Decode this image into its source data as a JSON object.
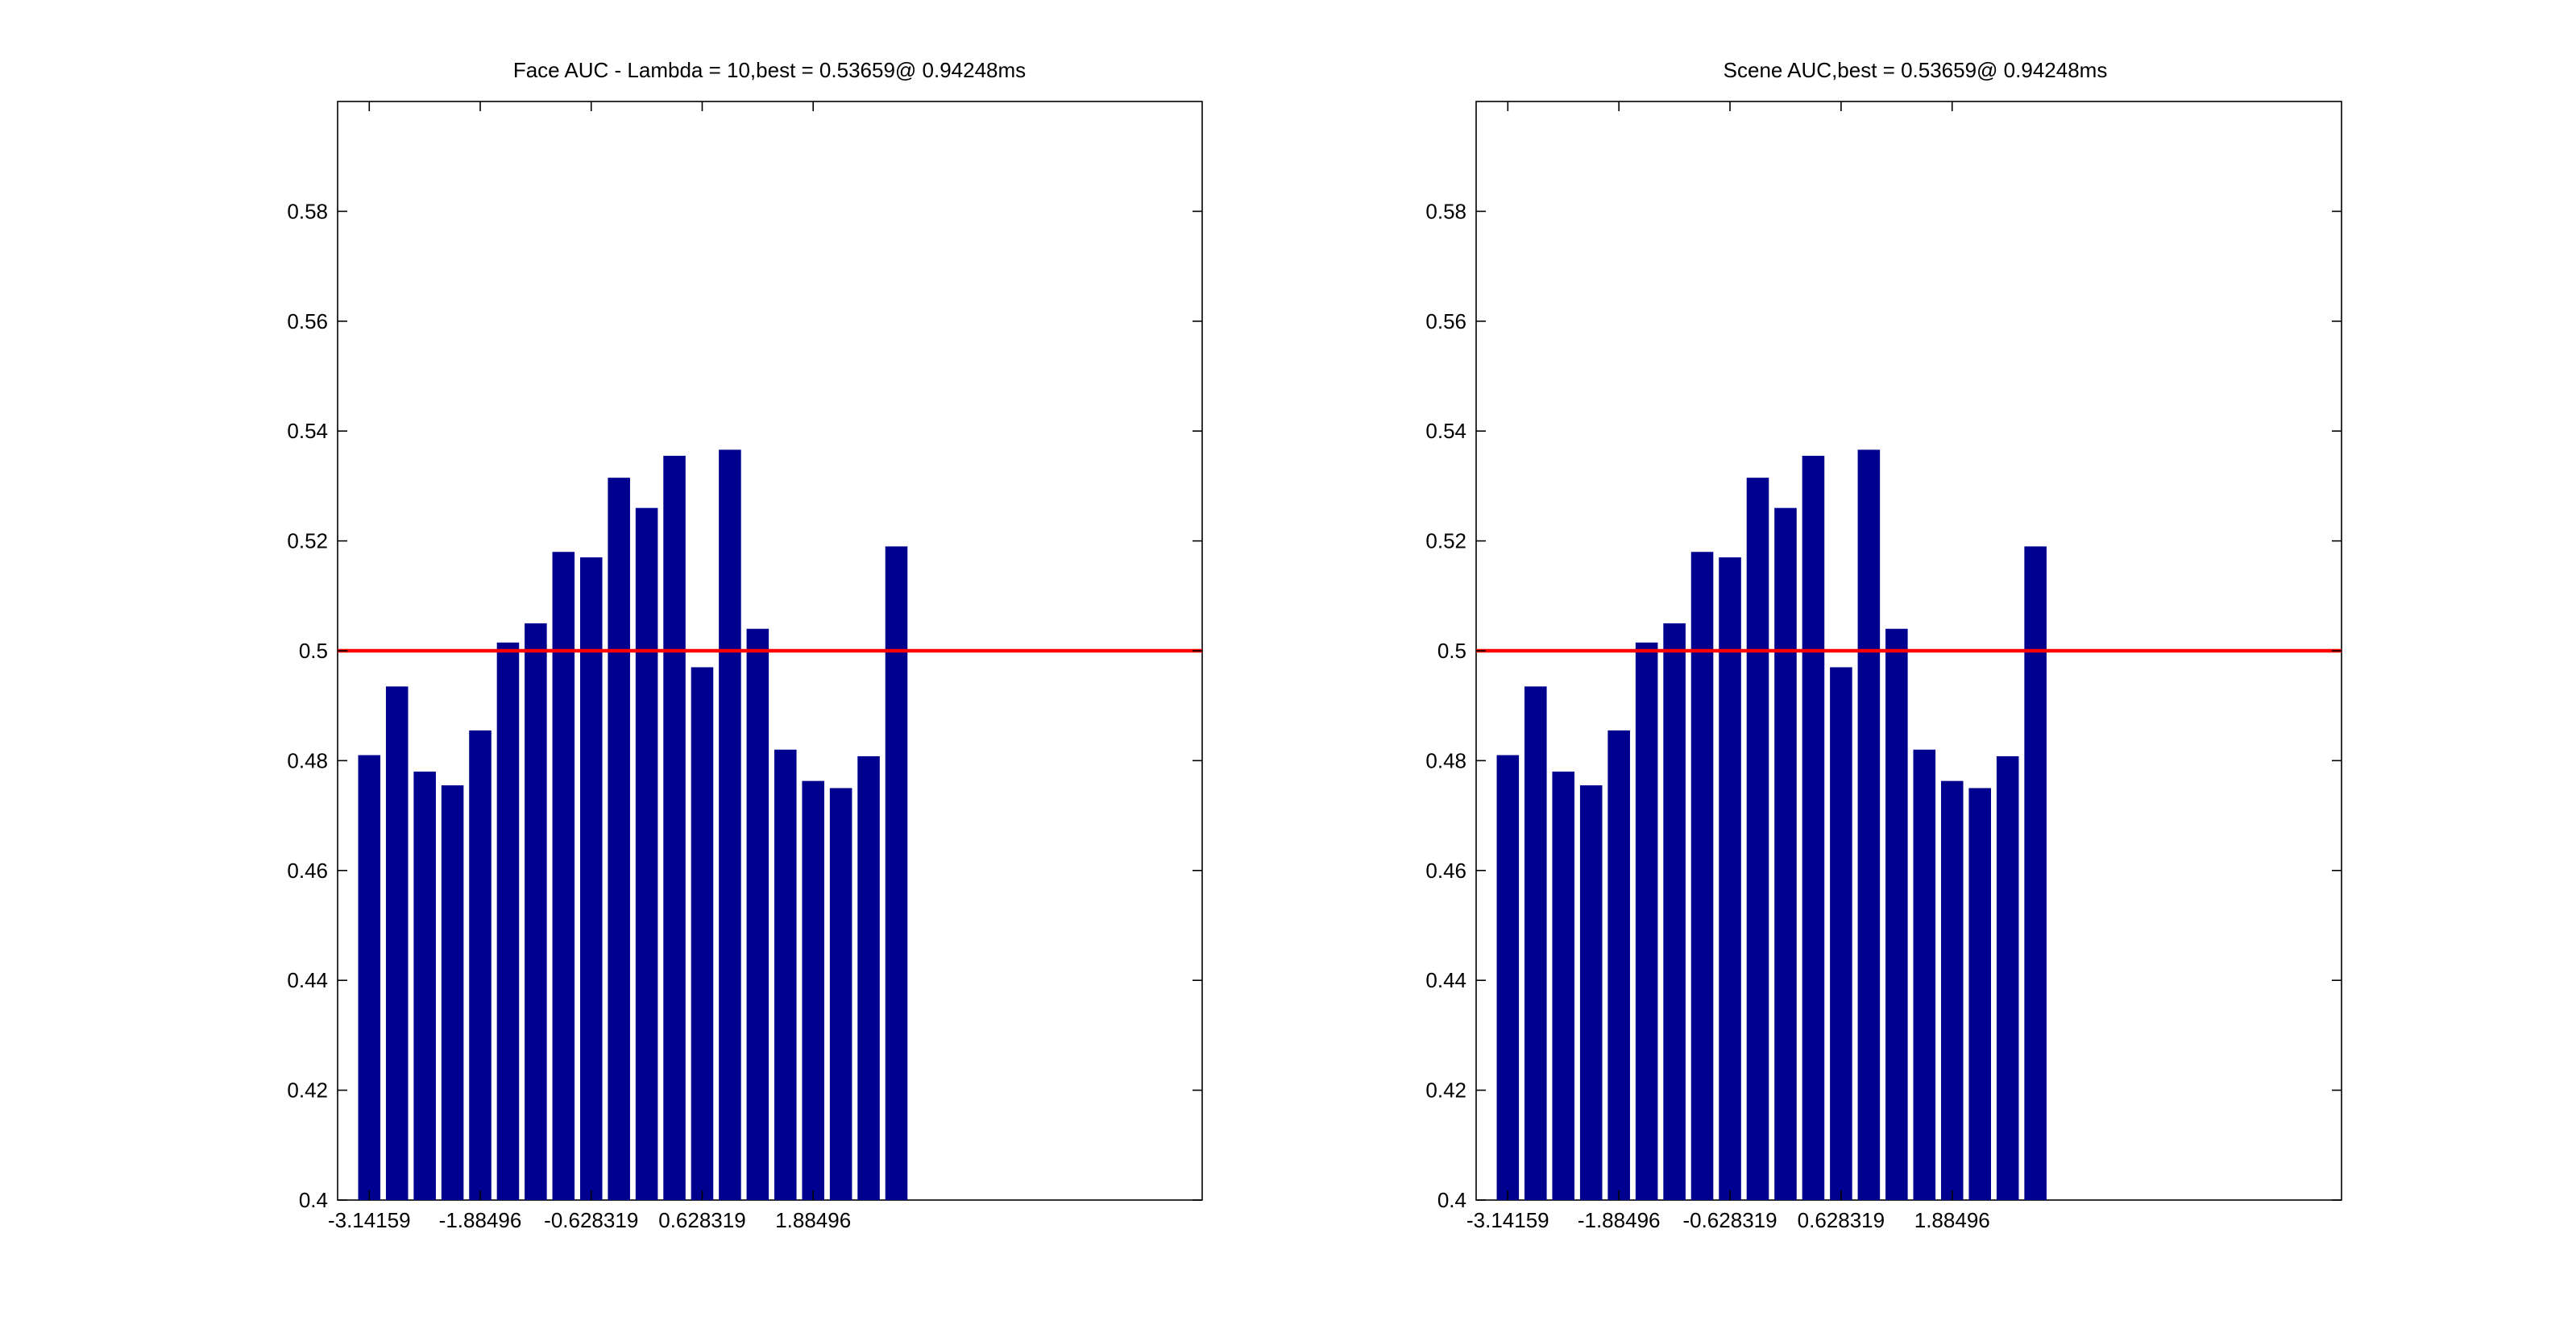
{
  "chart_data": [
    {
      "type": "bar",
      "title": "Face AUC - Lambda = 10,best = 0.53659@ 0.94248ms",
      "xlabel": "",
      "ylabel": "",
      "x": [
        -3.14159,
        -2.82743,
        -2.51327,
        -2.19911,
        -1.88496,
        -1.5708,
        -1.25664,
        -0.942478,
        -0.628319,
        -0.314159,
        0,
        0.314159,
        0.628319,
        0.942478,
        1.25664,
        1.5708,
        1.88496,
        2.19911,
        2.51327,
        2.82743
      ],
      "values": [
        0.481,
        0.4935,
        0.478,
        0.4755,
        0.4855,
        0.5015,
        0.505,
        0.518,
        0.517,
        0.5315,
        0.526,
        0.5355,
        0.497,
        0.5366,
        0.504,
        0.482,
        0.4763,
        0.475,
        0.4808,
        0.519
      ],
      "xlim": [
        -3.5,
        6.29
      ],
      "ylim": [
        0.4,
        0.6
      ],
      "xticks": [
        -3.14159,
        -1.88496,
        -0.628319,
        0.628319,
        1.88496
      ],
      "xtick_labels": [
        "-3.14159",
        "-1.88496",
        "-0.628319",
        "0.628319",
        "1.88496"
      ],
      "yticks": [
        0.4,
        0.42,
        0.44,
        0.46,
        0.48,
        0.5,
        0.52,
        0.54,
        0.56,
        0.58
      ],
      "ytick_labels": [
        "0.4",
        "0.42",
        "0.44",
        "0.46",
        "0.48",
        "0.5",
        "0.52",
        "0.54",
        "0.56",
        "0.58"
      ],
      "reference_line": 0.5,
      "grid": false,
      "bar_color": "#00008f",
      "line_color": "#ff0000"
    },
    {
      "type": "bar",
      "title": "Scene AUC,best = 0.53659@ 0.94248ms",
      "xlabel": "",
      "ylabel": "",
      "x": [
        -3.14159,
        -2.82743,
        -2.51327,
        -2.19911,
        -1.88496,
        -1.5708,
        -1.25664,
        -0.942478,
        -0.628319,
        -0.314159,
        0,
        0.314159,
        0.628319,
        0.942478,
        1.25664,
        1.5708,
        1.88496,
        2.19911,
        2.51327,
        2.82743
      ],
      "values": [
        0.481,
        0.4935,
        0.478,
        0.4755,
        0.4855,
        0.5015,
        0.505,
        0.518,
        0.517,
        0.5315,
        0.526,
        0.5355,
        0.497,
        0.5366,
        0.504,
        0.482,
        0.4763,
        0.475,
        0.4808,
        0.519
      ],
      "xlim": [
        -3.5,
        6.29
      ],
      "ylim": [
        0.4,
        0.6
      ],
      "xticks": [
        -3.14159,
        -1.88496,
        -0.628319,
        0.628319,
        1.88496
      ],
      "xtick_labels": [
        "-3.14159",
        "-1.88496",
        "-0.628319",
        "0.628319",
        "1.88496"
      ],
      "yticks": [
        0.4,
        0.42,
        0.44,
        0.46,
        0.48,
        0.5,
        0.52,
        0.54,
        0.56,
        0.58
      ],
      "ytick_labels": [
        "0.4",
        "0.42",
        "0.44",
        "0.46",
        "0.48",
        "0.5",
        "0.52",
        "0.54",
        "0.56",
        "0.58"
      ],
      "reference_line": 0.5,
      "grid": false,
      "bar_color": "#00008f",
      "line_color": "#ff0000"
    }
  ]
}
